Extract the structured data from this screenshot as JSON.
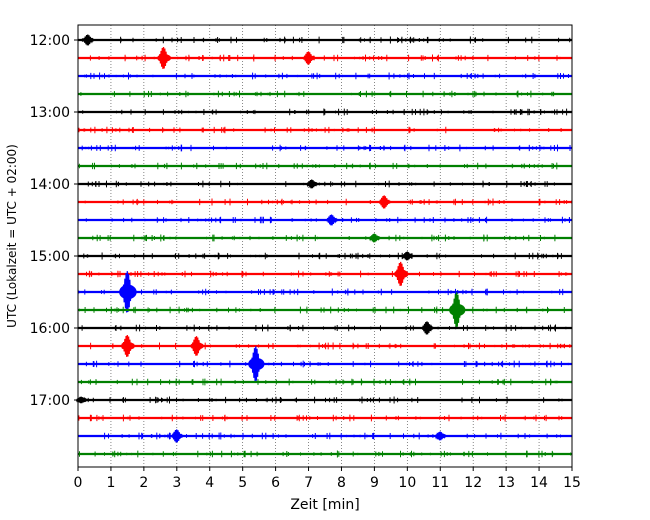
{
  "chart_data": {
    "type": "line",
    "title": "",
    "xlabel": "Zeit  [min]",
    "ylabel": "UTC (Lokalzeit = UTC + 02:00)",
    "xlim": [
      0,
      15
    ],
    "x_ticks": [
      0,
      1,
      2,
      3,
      4,
      5,
      6,
      7,
      8,
      9,
      10,
      11,
      12,
      13,
      14,
      15
    ],
    "x_tick_labels": [
      "0",
      "1",
      "2",
      "3",
      "4",
      "5",
      "6",
      "7",
      "8",
      "9",
      "10",
      "11",
      "12",
      "13",
      "14",
      "15"
    ],
    "grid": "vertical dotted",
    "y_tick_labels": [
      {
        "label": "12:00",
        "row": 0
      },
      {
        "label": "13:00",
        "row": 4
      },
      {
        "label": "14:00",
        "row": 8
      },
      {
        "label": "15:00",
        "row": 12
      },
      {
        "label": "16:00",
        "row": 16
      },
      {
        "label": "17:00",
        "row": 20
      }
    ],
    "trace_interval_min": 15,
    "colors": [
      "#000000",
      "#ff0000",
      "#0000ff",
      "#008000"
    ],
    "traces": [
      {
        "start": "12:00",
        "color": "#000000",
        "events": [
          [
            0.3,
            0.5
          ]
        ]
      },
      {
        "start": "12:15",
        "color": "#ff0000",
        "events": [
          [
            2.6,
            1.0
          ],
          [
            7.0,
            0.6
          ]
        ]
      },
      {
        "start": "12:30",
        "color": "#0000ff",
        "events": []
      },
      {
        "start": "12:45",
        "color": "#008000",
        "events": []
      },
      {
        "start": "13:00",
        "color": "#000000",
        "events": []
      },
      {
        "start": "13:15",
        "color": "#ff0000",
        "events": []
      },
      {
        "start": "13:30",
        "color": "#0000ff",
        "events": []
      },
      {
        "start": "13:45",
        "color": "#008000",
        "events": []
      },
      {
        "start": "14:00",
        "color": "#000000",
        "events": [
          [
            7.1,
            0.4
          ]
        ]
      },
      {
        "start": "14:15",
        "color": "#ff0000",
        "events": [
          [
            9.3,
            0.6
          ]
        ]
      },
      {
        "start": "14:30",
        "color": "#0000ff",
        "events": [
          [
            7.7,
            0.5
          ]
        ]
      },
      {
        "start": "14:45",
        "color": "#008000",
        "events": [
          [
            9.0,
            0.4
          ]
        ]
      },
      {
        "start": "15:00",
        "color": "#000000",
        "events": [
          [
            10.0,
            0.4
          ]
        ]
      },
      {
        "start": "15:15",
        "color": "#ff0000",
        "events": [
          [
            9.8,
            1.1
          ]
        ]
      },
      {
        "start": "15:30",
        "color": "#0000ff",
        "events": [
          [
            1.5,
            1.9
          ]
        ]
      },
      {
        "start": "15:45",
        "color": "#008000",
        "events": [
          [
            11.5,
            1.6
          ]
        ]
      },
      {
        "start": "16:00",
        "color": "#000000",
        "events": [
          [
            10.6,
            0.6
          ]
        ]
      },
      {
        "start": "16:15",
        "color": "#ff0000",
        "events": [
          [
            1.5,
            1.0
          ],
          [
            3.6,
            0.9
          ]
        ]
      },
      {
        "start": "16:30",
        "color": "#0000ff",
        "events": [
          [
            5.4,
            1.6
          ]
        ]
      },
      {
        "start": "16:45",
        "color": "#008000",
        "events": []
      },
      {
        "start": "17:00",
        "color": "#000000",
        "events": [
          [
            0.1,
            0.3
          ]
        ]
      },
      {
        "start": "17:15",
        "color": "#ff0000",
        "events": []
      },
      {
        "start": "17:30",
        "color": "#0000ff",
        "events": [
          [
            3.0,
            0.6
          ],
          [
            11.0,
            0.4
          ]
        ]
      },
      {
        "start": "17:45",
        "color": "#008000",
        "events": []
      }
    ]
  }
}
